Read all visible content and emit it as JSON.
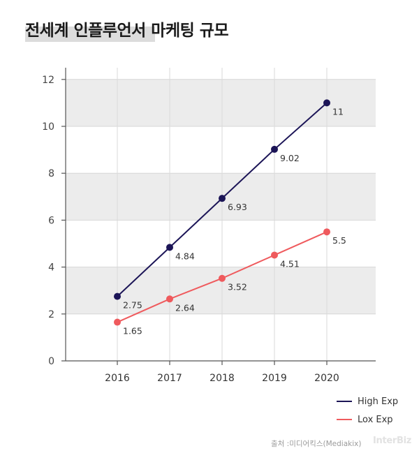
{
  "title": "전세계 인플루언서 마케팅 규모",
  "source": "출처 :미디어킥스(Mediakix)",
  "brand": "InterBiz",
  "chart_data": {
    "type": "line",
    "x": [
      "2016",
      "2017",
      "2018",
      "2019",
      "2020"
    ],
    "yticks": [
      0,
      2,
      4,
      6,
      8,
      10,
      12
    ],
    "ylim": [
      0,
      12.5
    ],
    "series": [
      {
        "name": "High Exp",
        "color": "#1c1557",
        "values": [
          2.75,
          4.84,
          6.93,
          9.02,
          11
        ]
      },
      {
        "name": "Lox Exp",
        "color": "#ef5a5d",
        "values": [
          1.65,
          2.64,
          3.52,
          4.51,
          5.5
        ]
      }
    ],
    "data_labels": {
      "High Exp": [
        "2.75",
        "4.84",
        "6.93",
        "9.02",
        "11"
      ],
      "Lox Exp": [
        "1.65",
        "2.64",
        "3.52",
        "4.51",
        "5.5"
      ]
    },
    "grid": "banded",
    "legend": "bottom-right"
  }
}
